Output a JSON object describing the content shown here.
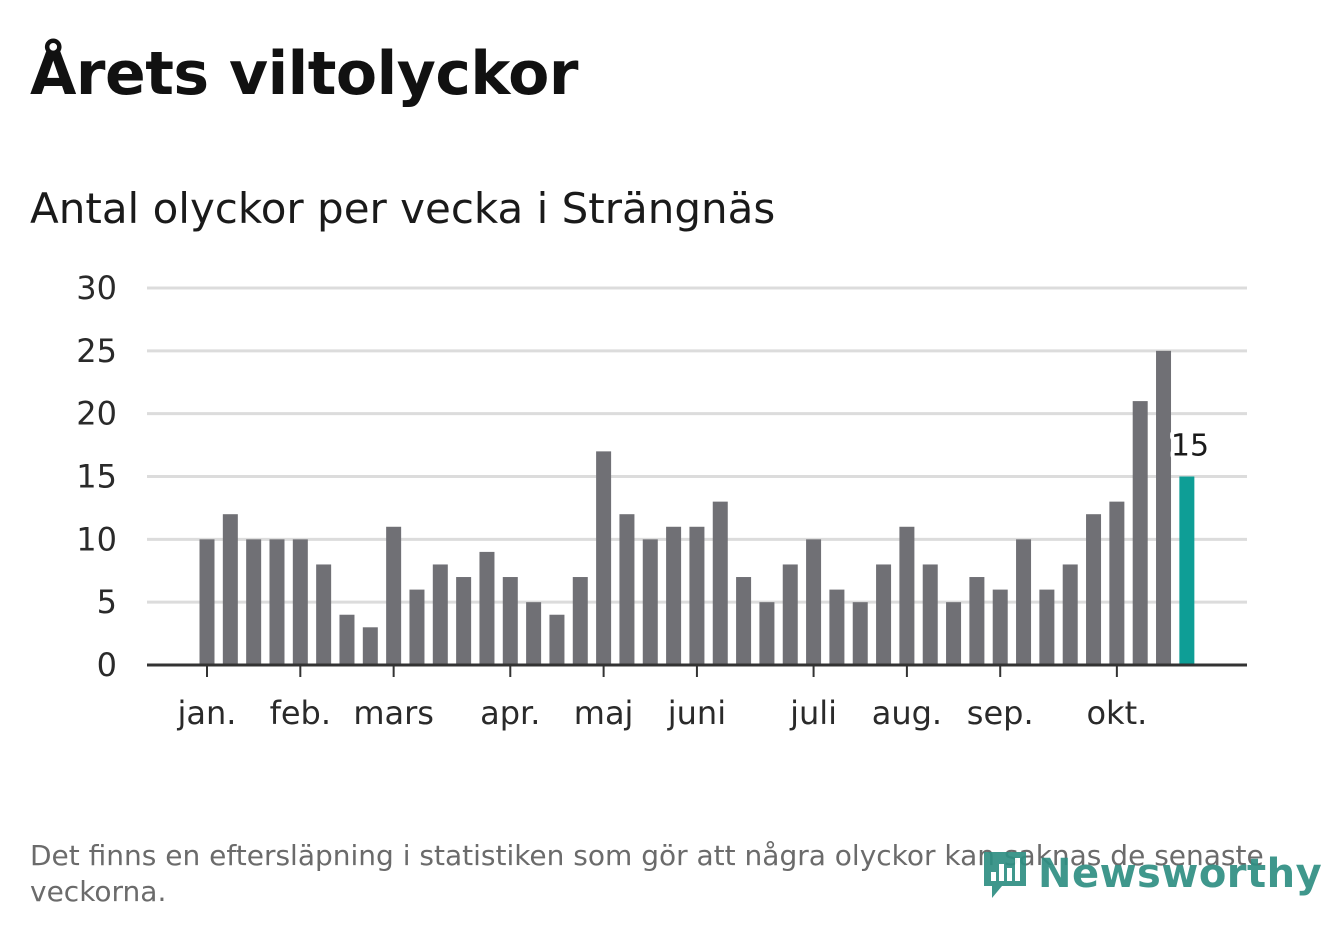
{
  "title": "Årets viltolyckor",
  "subtitle": "Antal olyckor per vecka i Strängnäs",
  "footnote": "Det finns en eftersläpning i statistiken som gör att några olyckor kan saknas de senaste veckorna.",
  "brand": {
    "name": "Newsworthy",
    "color": "#2f8f83"
  },
  "colors": {
    "bar": "#707075",
    "highlight": "#0e9e96",
    "grid": "#dcdcdc",
    "axis": "#333333",
    "text": "#2a2a2a"
  },
  "chart_data": {
    "type": "bar",
    "title": "Antal olyckor per vecka i Strängnäs",
    "xlabel": "",
    "ylabel": "",
    "ylim": [
      0,
      30
    ],
    "yticks": [
      0,
      5,
      10,
      15,
      20,
      25,
      30
    ],
    "grid": true,
    "values": [
      10,
      12,
      10,
      10,
      10,
      8,
      4,
      3,
      11,
      6,
      8,
      7,
      9,
      7,
      5,
      4,
      7,
      17,
      12,
      10,
      11,
      11,
      13,
      7,
      5,
      8,
      10,
      6,
      5,
      8,
      11,
      8,
      5,
      7,
      6,
      10,
      6,
      8,
      12,
      13,
      21,
      25,
      15
    ],
    "highlight_index": 42,
    "highlight_label": "15",
    "month_ticks": [
      {
        "label": "jan.",
        "week_index": 0
      },
      {
        "label": "feb.",
        "week_index": 4
      },
      {
        "label": "mars",
        "week_index": 8
      },
      {
        "label": "apr.",
        "week_index": 13
      },
      {
        "label": "maj",
        "week_index": 17
      },
      {
        "label": "juni",
        "week_index": 21
      },
      {
        "label": "juli",
        "week_index": 26
      },
      {
        "label": "aug.",
        "week_index": 30
      },
      {
        "label": "sep.",
        "week_index": 34
      },
      {
        "label": "okt.",
        "week_index": 39
      }
    ]
  }
}
